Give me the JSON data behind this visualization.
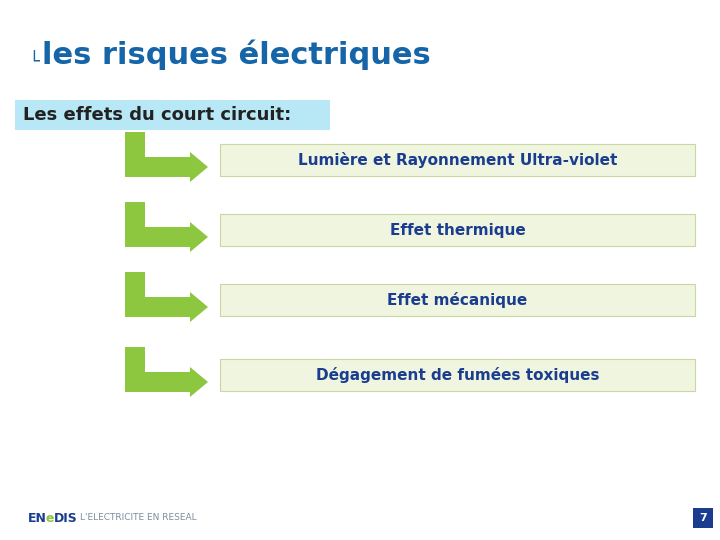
{
  "title": "les risques électriques",
  "title_color": "#1565a8",
  "title_fontsize": 22,
  "subtitle": "Les effets du court circuit:",
  "subtitle_color": "#222222",
  "subtitle_bg": "#b8e8f5",
  "subtitle_fontsize": 13,
  "items": [
    "Lumière et Rayonnement Ultra-violet",
    "Effet thermique",
    "Effet mécanique",
    "Dégagement de fumées toxiques"
  ],
  "item_color": "#1a3d8f",
  "item_bg": "#f0f5e0",
  "item_border": "#c8d8a0",
  "item_fontsize": 11,
  "arrow_color": "#8dc63f",
  "bg_color": "#ffffff",
  "footer_text": "L'ELECTRICITE EN RESEAL",
  "footer_color": "#7a8fa0",
  "enedis_color_en": "#1a3d8f",
  "enedis_color_e": "#8dc63f",
  "enedis_color_dis": "#1a3d8f",
  "page_num": "7",
  "page_bg": "#1a3d8f"
}
